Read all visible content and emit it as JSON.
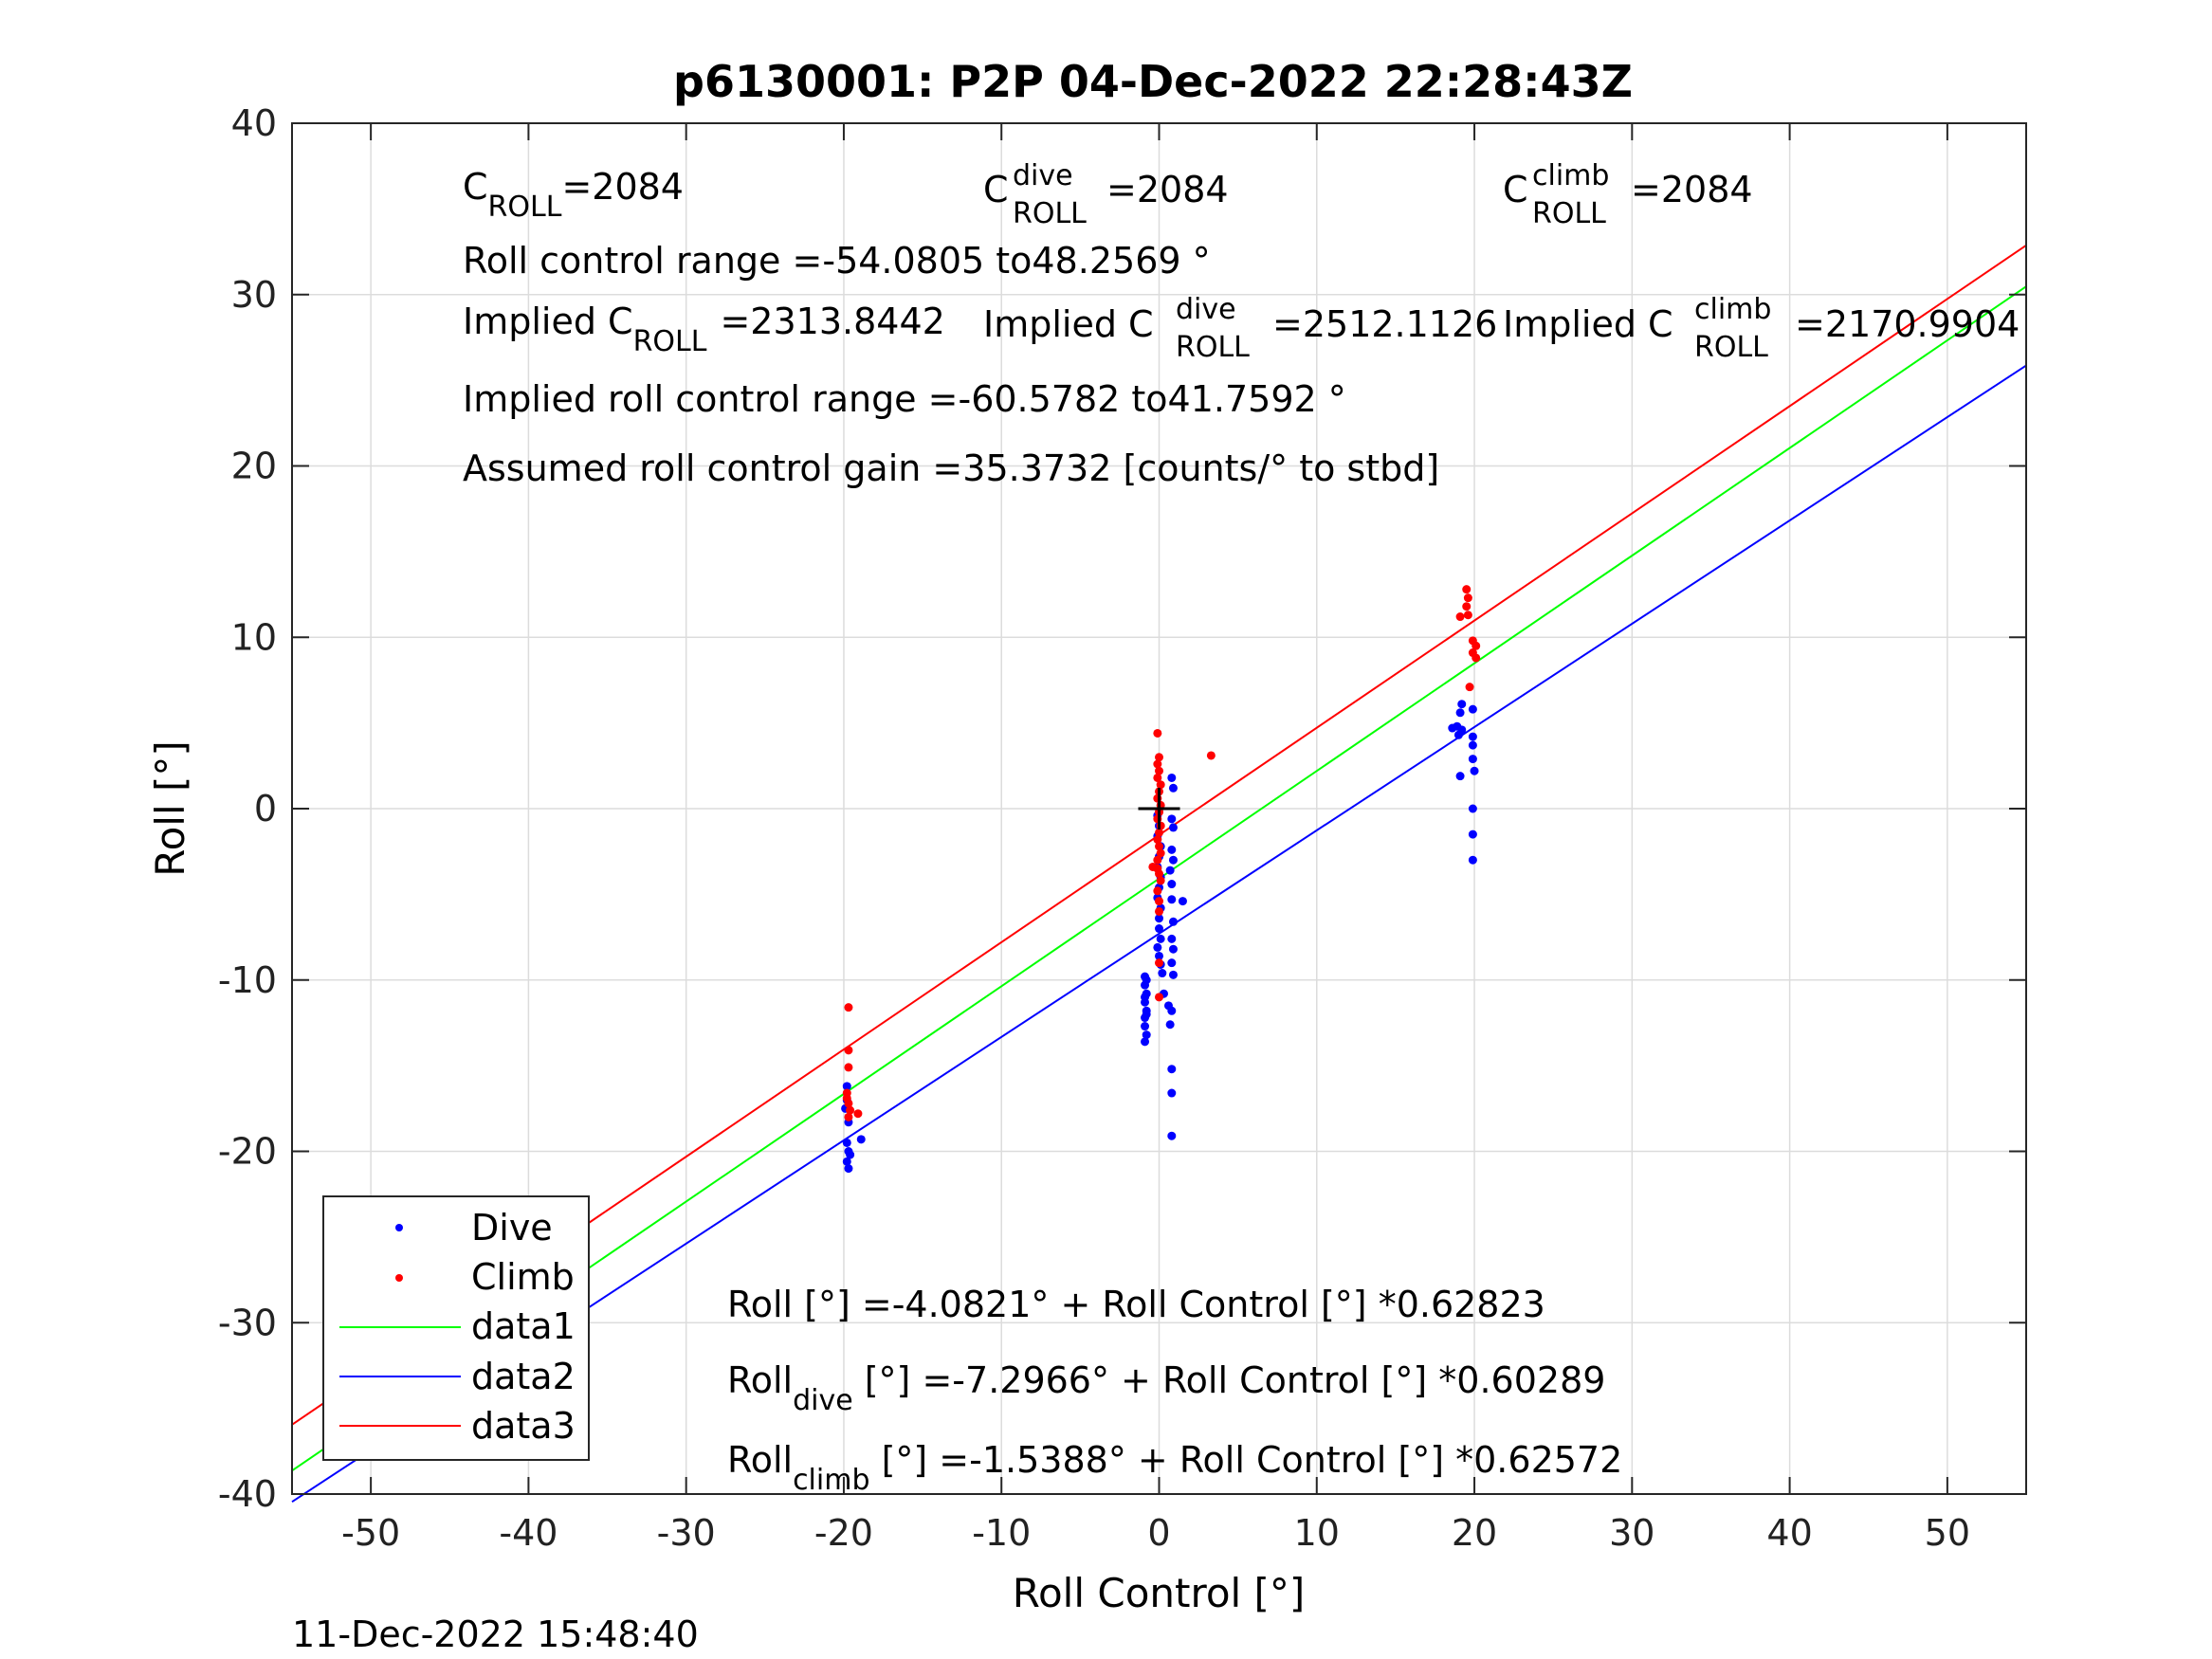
{
  "chart_data": {
    "type": "scatter",
    "title": "p6130001: P2P 04-Dec-2022 22:28:43Z",
    "xlabel": "Roll Control [°]",
    "ylabel": "Roll [°]",
    "xlim": [
      -55,
      55
    ],
    "ylim": [
      -40,
      40
    ],
    "x_ticks": [
      -50,
      -40,
      -30,
      -20,
      -10,
      0,
      10,
      20,
      30,
      40,
      50
    ],
    "y_ticks": [
      -40,
      -30,
      -20,
      -10,
      0,
      10,
      20,
      30,
      40
    ],
    "grid": true,
    "timestamp": "11-Dec-2022 15:48:40",
    "legend": {
      "position": "bottom-left",
      "entries": [
        "Dive",
        "Climb",
        "data1",
        "data2",
        "data3"
      ]
    },
    "colors": {
      "dive": "#0000ff",
      "climb": "#ff0000",
      "data1": "#00ff00",
      "data2": "#0000ff",
      "data3": "#ff0000"
    },
    "series": [
      {
        "name": "Dive",
        "kind": "points",
        "points": [
          [
            -19.8,
            -16.2
          ],
          [
            -19.8,
            -17.0
          ],
          [
            -19.7,
            -18.3
          ],
          [
            -19.8,
            -19.5
          ],
          [
            -19.7,
            -20.0
          ],
          [
            -19.8,
            -20.6
          ],
          [
            -19.7,
            -21.0
          ],
          [
            -19.6,
            -20.2
          ],
          [
            -18.9,
            -19.3
          ],
          [
            -19.9,
            -17.5
          ],
          [
            -0.9,
            -9.8
          ],
          [
            -0.9,
            -10.3
          ],
          [
            -0.8,
            -10.8
          ],
          [
            -0.9,
            -11.3
          ],
          [
            -0.8,
            -11.8
          ],
          [
            -0.9,
            -12.2
          ],
          [
            -0.9,
            -12.7
          ],
          [
            -0.8,
            -13.2
          ],
          [
            -0.9,
            -13.6
          ],
          [
            -0.8,
            -10.0
          ],
          [
            -0.9,
            -11.0
          ],
          [
            -0.8,
            -12.0
          ],
          [
            -0.1,
            -0.4
          ],
          [
            0.0,
            -1.0
          ],
          [
            -0.1,
            -1.6
          ],
          [
            0.1,
            -2.2
          ],
          [
            0.0,
            -2.8
          ],
          [
            -0.1,
            -3.4
          ],
          [
            0.1,
            -4.0
          ],
          [
            0.0,
            -4.6
          ],
          [
            -0.1,
            -5.2
          ],
          [
            0.1,
            -5.8
          ],
          [
            0.0,
            -6.4
          ],
          [
            0.0,
            -7.0
          ],
          [
            0.1,
            -7.6
          ],
          [
            -0.1,
            -8.1
          ],
          [
            0.0,
            -8.6
          ],
          [
            0.1,
            -9.1
          ],
          [
            0.2,
            -9.6
          ],
          [
            0.3,
            -10.8
          ],
          [
            0.6,
            -11.5
          ],
          [
            0.8,
            1.8
          ],
          [
            0.9,
            1.2
          ],
          [
            0.8,
            -0.6
          ],
          [
            0.9,
            -1.1
          ],
          [
            0.8,
            -2.4
          ],
          [
            0.9,
            -3.0
          ],
          [
            0.8,
            -4.4
          ],
          [
            0.7,
            -3.6
          ],
          [
            0.8,
            -5.3
          ],
          [
            0.9,
            -6.6
          ],
          [
            0.8,
            -7.6
          ],
          [
            0.9,
            -8.2
          ],
          [
            0.8,
            -9.0
          ],
          [
            0.9,
            -9.7
          ],
          [
            0.8,
            -11.8
          ],
          [
            0.7,
            -12.6
          ],
          [
            0.8,
            -15.2
          ],
          [
            0.8,
            -16.6
          ],
          [
            0.8,
            -19.1
          ],
          [
            1.5,
            -5.4
          ],
          [
            18.9,
            4.8
          ],
          [
            19.1,
            5.6
          ],
          [
            19.2,
            6.1
          ],
          [
            19.0,
            4.3
          ],
          [
            19.1,
            1.9
          ],
          [
            18.6,
            4.7
          ],
          [
            19.2,
            4.6
          ],
          [
            19.9,
            5.8
          ],
          [
            19.9,
            4.2
          ],
          [
            19.9,
            3.7
          ],
          [
            19.9,
            2.9
          ],
          [
            20.0,
            2.2
          ],
          [
            19.9,
            0.0
          ],
          [
            19.9,
            -1.5
          ],
          [
            19.9,
            -3.0
          ]
        ]
      },
      {
        "name": "Climb",
        "kind": "points",
        "points": [
          [
            -19.7,
            -11.6
          ],
          [
            -19.7,
            -14.1
          ],
          [
            -19.7,
            -15.1
          ],
          [
            -19.8,
            -16.6
          ],
          [
            -19.7,
            -17.2
          ],
          [
            -19.6,
            -17.6
          ],
          [
            -19.7,
            -18.0
          ],
          [
            -19.1,
            -17.8
          ],
          [
            -19.8,
            -16.9
          ],
          [
            -0.4,
            -3.4
          ],
          [
            0.0,
            -11.0
          ],
          [
            0.0,
            -9.0
          ],
          [
            -0.1,
            -4.8
          ],
          [
            -0.1,
            4.4
          ],
          [
            0.0,
            3.0
          ],
          [
            -0.1,
            2.6
          ],
          [
            0.0,
            2.2
          ],
          [
            -0.1,
            1.8
          ],
          [
            0.1,
            1.4
          ],
          [
            0.0,
            1.0
          ],
          [
            -0.1,
            0.6
          ],
          [
            0.1,
            0.2
          ],
          [
            0.0,
            -0.2
          ],
          [
            -0.1,
            -0.6
          ],
          [
            0.1,
            -1.0
          ],
          [
            0.0,
            -1.4
          ],
          [
            -0.1,
            -1.8
          ],
          [
            0.0,
            -2.2
          ],
          [
            0.1,
            -2.6
          ],
          [
            -0.1,
            -3.0
          ],
          [
            0.0,
            -3.8
          ],
          [
            0.1,
            -4.2
          ],
          [
            0.0,
            -5.4
          ],
          [
            0.0,
            -6.0
          ],
          [
            -0.1,
            -3.5
          ],
          [
            3.3,
            3.1
          ],
          [
            19.5,
            12.8
          ],
          [
            19.6,
            12.3
          ],
          [
            19.5,
            11.8
          ],
          [
            19.6,
            11.3
          ],
          [
            19.1,
            11.2
          ],
          [
            19.9,
            9.8
          ],
          [
            20.1,
            9.5
          ],
          [
            19.9,
            9.1
          ],
          [
            20.1,
            8.8
          ],
          [
            19.7,
            7.1
          ]
        ]
      },
      {
        "name": "data1",
        "kind": "line",
        "x": [
          -55,
          55
        ],
        "y": [
          -38.635,
          30.471
        ]
      },
      {
        "name": "data2",
        "kind": "line",
        "x": [
          -55,
          55
        ],
        "y": [
          -40.455,
          25.862
        ]
      },
      {
        "name": "data3",
        "kind": "line",
        "x": [
          -55,
          55
        ],
        "y": [
          -35.953,
          32.876
        ]
      }
    ],
    "marker": {
      "type": "plus",
      "x": 0,
      "y": 0
    },
    "annotations": {
      "c_roll": {
        "base": "C",
        "sub": "ROLL",
        "value": "=2084"
      },
      "c_roll_dive": {
        "base": "C",
        "sup": "dive",
        "sub": "ROLL",
        "value": "=2084"
      },
      "c_roll_climb": {
        "base": "C",
        "sup": "climb",
        "sub": "ROLL",
        "value": "=2084"
      },
      "roll_control_range": "Roll control range =-54.0805 to48.2569 °",
      "implied_c_roll": {
        "base": "Implied C",
        "sub": "ROLL",
        "value": "=2313.8442"
      },
      "implied_c_roll_dive": {
        "base": "Implied C",
        "sup": "dive",
        "sub": "ROLL",
        "value": "=2512.1126"
      },
      "implied_c_roll_climb": {
        "base": "Implied C",
        "sup": "climb",
        "sub": "ROLL",
        "value": "=2170.9904"
      },
      "implied_range": "Implied roll control range =-60.5782 to41.7592 °",
      "gain": "Assumed roll control gain =35.3732 [counts/° to stbd]",
      "fit_all": "Roll [°] =-4.0821° + Roll Control [°] *0.62823",
      "fit_dive": {
        "base": "Roll",
        "sub": "dive",
        "rest": " [°] =-7.2966° + Roll Control [°] *0.60289"
      },
      "fit_climb": {
        "base": "Roll",
        "sub": "climb",
        "rest": " [°] =-1.5388° + Roll Control [°] *0.62572"
      }
    }
  }
}
